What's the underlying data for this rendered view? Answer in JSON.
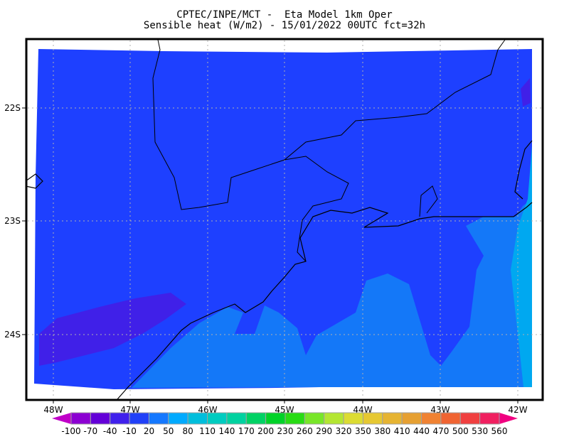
{
  "header": {
    "line1": "CPTEC/INPE/MCT -  Eta Model 1km Oper",
    "line2": "Sensible heat (W/m2) - 15/01/2022 00UTC fct=32h"
  },
  "map": {
    "lon_labels": [
      "48W",
      "47W",
      "46W",
      "45W",
      "44W",
      "43W",
      "42W"
    ],
    "lat_labels": [
      "22S",
      "23S",
      "24S"
    ],
    "grid": "dotted",
    "colors": {
      "land_main": "#1e40ff",
      "ocean_light": "#1478f8",
      "ocean_lighter": "#00a8f0",
      "low_purple": "#4020e8",
      "frame": "#000000",
      "coastline": "#000000"
    }
  },
  "colorbar": {
    "labels": [
      "-100",
      "-70",
      "-40",
      "-10",
      "20",
      "50",
      "80",
      "110",
      "140",
      "170",
      "200",
      "230",
      "260",
      "290",
      "320",
      "350",
      "380",
      "410",
      "440",
      "470",
      "500",
      "530",
      "560"
    ],
    "colors": [
      "#8c00d2",
      "#6400d8",
      "#4020ec",
      "#2040f8",
      "#1478ff",
      "#00aaff",
      "#00bedc",
      "#00ccc0",
      "#00d2a0",
      "#00d264",
      "#00d228",
      "#28dc14",
      "#78e628",
      "#b4e632",
      "#dcdc32",
      "#e6c832",
      "#e6b432",
      "#e6a032",
      "#f08232",
      "#f06432",
      "#f04040",
      "#f02060"
    ],
    "under_color": "#c000c8",
    "over_color": "#f00080"
  }
}
